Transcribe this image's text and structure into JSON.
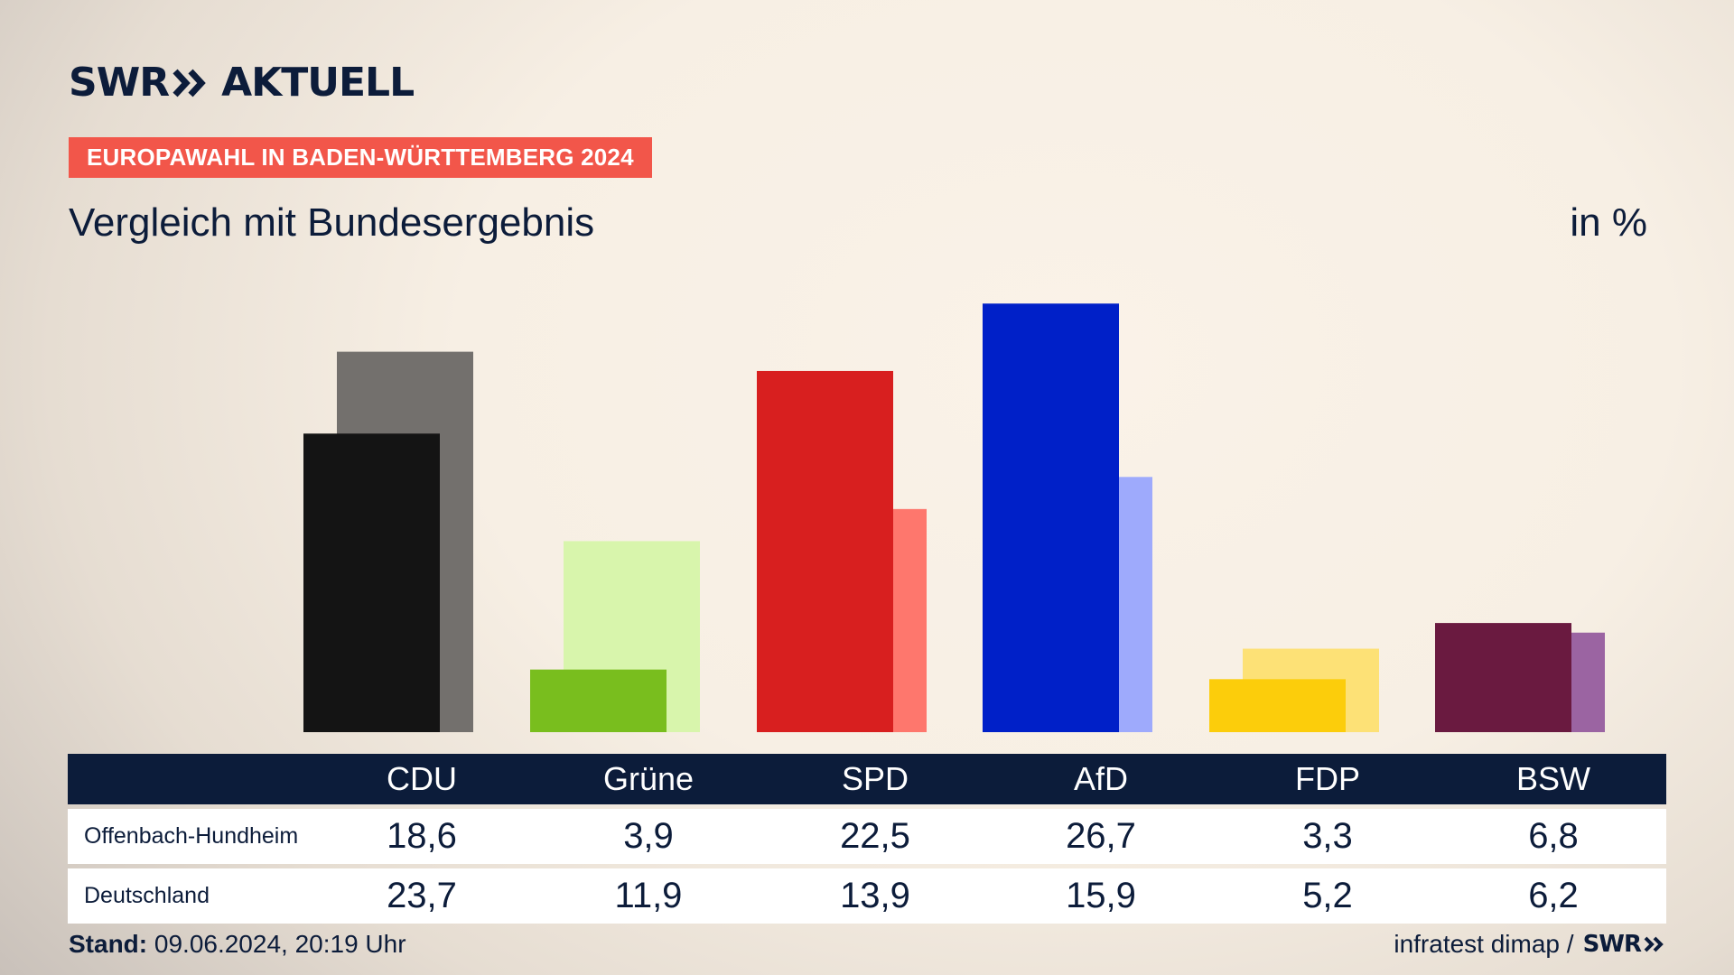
{
  "brand": {
    "logo_text": "SWR",
    "logo_suffix": "AKTUELL",
    "logo_color": "#0c1c3a"
  },
  "tag": "EUROPAWAHL IN BADEN-WÜRTTEMBERG 2024",
  "subtitle": "Vergleich mit Bundesergebnis",
  "unit": "in %",
  "table": {
    "rows": [
      {
        "label": "Offenbach-Hundheim"
      },
      {
        "label": "Deutschland"
      }
    ]
  },
  "chart_data": {
    "type": "bar",
    "categories": [
      "CDU",
      "Grüne",
      "SPD",
      "AfD",
      "FDP",
      "BSW"
    ],
    "series": [
      {
        "name": "Offenbach-Hundheim",
        "values": [
          "18,6",
          "3,9",
          "22,5",
          "26,7",
          "3,3",
          "6,8"
        ]
      },
      {
        "name": "Deutschland",
        "values": [
          "23,7",
          "11,9",
          "13,9",
          "15,9",
          "5,2",
          "6,2"
        ]
      }
    ],
    "colors_local": [
      "#141414",
      "#79be1e",
      "#d81f1f",
      "#0020c8",
      "#fccd0b",
      "#6a1a40"
    ],
    "colors_national": [
      "#73706d",
      "#d8f5ac",
      "#fe776d",
      "#9eaafc",
      "#fde176",
      "#9b64a2"
    ],
    "ylim": [
      0,
      30
    ]
  },
  "footer": {
    "stand_label": "Stand:",
    "stand_value": "09.06.2024, 20:19 Uhr",
    "source": "infratest dimap /",
    "source_logo": "SWR"
  }
}
